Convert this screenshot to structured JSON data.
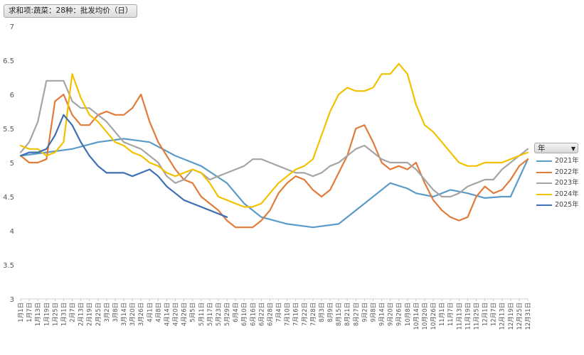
{
  "field_button": "求和项:蔬菜：28种：批发均价（日）",
  "legend_filter": "年",
  "colors": {
    "2021年": "#5b9bc8",
    "2022年": "#e07b39",
    "2023年": "#a5a5a5",
    "2024年": "#f2c200",
    "2025年": "#3e6fb2"
  },
  "chart_data": {
    "type": "line",
    "ylim": [
      3,
      7
    ],
    "yticks": [
      "3",
      "3.5",
      "4",
      "4.5",
      "5",
      "5.5",
      "6",
      "6.5",
      "7"
    ],
    "xticks": [
      "1月1日",
      "1月7日",
      "1月13日",
      "1月19日",
      "1月25日",
      "1月31日",
      "2月7日",
      "2月13日",
      "2月19日",
      "2月25日",
      "3月2日",
      "3月8日",
      "3月14日",
      "3月20日",
      "3月26日",
      "4月1日",
      "4月8日",
      "4月14日",
      "4月20日",
      "4月26日",
      "5月5日",
      "5月11日",
      "5月17日",
      "5月23日",
      "5月29日",
      "6月4日",
      "6月10日",
      "6月16日",
      "6月22日",
      "6月28日",
      "7月4日",
      "7月10日",
      "7月16日",
      "7月22日",
      "7月28日",
      "8月3日",
      "8月9日",
      "8月15日",
      "8月21日",
      "8月27日",
      "9月2日",
      "9月8日",
      "9月14日",
      "9月20日",
      "9月26日",
      "10月8日",
      "10月14日",
      "10月20日",
      "10月26日",
      "11月1日",
      "11月7日",
      "11月13日",
      "11月19日",
      "11月25日",
      "12月1日",
      "12月7日",
      "12月13日",
      "12月19日",
      "12月25日",
      "12月31日"
    ],
    "series": [
      {
        "name": "2021年",
        "x": [
          0,
          3,
          6,
          9,
          12,
          15,
          18,
          21,
          24,
          26,
          28,
          31,
          34,
          37,
          40,
          43,
          45,
          46,
          48,
          50,
          52,
          54,
          56,
          57,
          59
        ],
        "y": [
          5.1,
          5.15,
          5.2,
          5.3,
          5.35,
          5.3,
          5.1,
          4.95,
          4.7,
          4.4,
          4.2,
          4.1,
          4.05,
          4.1,
          4.4,
          4.7,
          4.62,
          4.55,
          4.5,
          4.6,
          4.55,
          4.48,
          4.5,
          4.5,
          5.05
        ]
      },
      {
        "name": "2022年",
        "x": [
          0,
          1,
          2,
          3,
          4,
          5,
          6,
          7,
          8,
          9,
          10,
          11,
          12,
          13,
          14,
          15,
          16,
          17,
          18,
          19,
          20,
          21,
          22,
          23,
          24,
          25,
          26,
          27,
          28,
          29,
          30,
          31,
          32,
          33,
          34,
          35,
          36,
          37,
          38,
          39,
          40,
          41,
          42,
          43,
          44,
          45,
          46,
          47,
          48,
          49,
          50,
          51,
          52,
          53,
          54,
          55,
          56,
          57,
          58,
          59
        ],
        "y": [
          5.1,
          5.0,
          5.0,
          5.05,
          5.9,
          6.0,
          5.7,
          5.55,
          5.55,
          5.7,
          5.75,
          5.7,
          5.7,
          5.8,
          6.0,
          5.6,
          5.3,
          5.1,
          4.9,
          4.75,
          4.7,
          4.5,
          4.4,
          4.3,
          4.15,
          4.05,
          4.05,
          4.05,
          4.15,
          4.3,
          4.55,
          4.7,
          4.8,
          4.75,
          4.6,
          4.5,
          4.6,
          4.85,
          5.1,
          5.5,
          5.55,
          5.3,
          5.0,
          4.9,
          4.95,
          4.9,
          5.0,
          4.7,
          4.45,
          4.3,
          4.2,
          4.15,
          4.2,
          4.5,
          4.65,
          4.55,
          4.6,
          4.75,
          4.95,
          5.05
        ]
      },
      {
        "name": "2023年",
        "x": [
          0,
          1,
          2,
          3,
          4,
          5,
          6,
          7,
          8,
          9,
          10,
          11,
          12,
          13,
          14,
          15,
          16,
          17,
          18,
          19,
          20,
          21,
          22,
          23,
          24,
          25,
          26,
          27,
          28,
          29,
          30,
          31,
          32,
          33,
          34,
          35,
          36,
          37,
          38,
          39,
          40,
          41,
          42,
          43,
          44,
          45,
          46,
          47,
          48,
          49,
          50,
          51,
          52,
          53,
          54,
          55,
          56,
          57,
          58,
          59
        ],
        "y": [
          5.15,
          5.3,
          5.6,
          6.2,
          6.2,
          6.2,
          5.9,
          5.8,
          5.8,
          5.7,
          5.6,
          5.45,
          5.3,
          5.25,
          5.2,
          5.1,
          5.0,
          4.8,
          4.7,
          4.75,
          4.9,
          4.85,
          4.75,
          4.8,
          4.85,
          4.9,
          4.95,
          5.05,
          5.05,
          5.0,
          4.95,
          4.9,
          4.85,
          4.85,
          4.8,
          4.85,
          4.95,
          5.0,
          5.1,
          5.2,
          5.25,
          5.15,
          5.05,
          5.0,
          5.0,
          5.0,
          4.9,
          4.75,
          4.6,
          4.5,
          4.5,
          4.55,
          4.65,
          4.7,
          4.75,
          4.75,
          4.9,
          5.0,
          5.1,
          5.2
        ]
      },
      {
        "name": "2024年",
        "x": [
          0,
          1,
          2,
          3,
          4,
          5,
          6,
          7,
          8,
          9,
          10,
          11,
          12,
          13,
          14,
          15,
          16,
          17,
          18,
          19,
          20,
          21,
          22,
          23,
          24,
          25,
          26,
          27,
          28,
          29,
          30,
          31,
          32,
          33,
          34,
          35,
          36,
          37,
          38,
          39,
          40,
          41,
          42,
          43,
          44,
          45,
          46,
          47,
          48,
          49,
          50,
          51,
          52,
          53,
          54,
          55,
          56,
          57,
          58,
          59
        ],
        "y": [
          5.25,
          5.2,
          5.2,
          5.1,
          5.15,
          5.3,
          6.3,
          5.95,
          5.7,
          5.6,
          5.45,
          5.3,
          5.25,
          5.15,
          5.1,
          5.0,
          4.95,
          4.85,
          4.8,
          4.85,
          4.9,
          4.85,
          4.7,
          4.5,
          4.45,
          4.4,
          4.35,
          4.35,
          4.4,
          4.55,
          4.7,
          4.8,
          4.9,
          4.95,
          5.05,
          5.4,
          5.75,
          6.0,
          6.1,
          6.05,
          6.05,
          6.1,
          6.3,
          6.3,
          6.45,
          6.3,
          5.85,
          5.55,
          5.45,
          5.3,
          5.15,
          5.0,
          4.95,
          4.95,
          5.0,
          5.0,
          5.0,
          5.05,
          5.1,
          5.15
        ]
      },
      {
        "name": "2025年",
        "x": [
          0,
          1,
          2,
          3,
          4,
          5,
          6,
          7,
          8,
          9,
          10,
          11,
          12,
          13,
          14,
          15,
          16,
          17,
          18,
          19,
          20,
          21,
          22,
          23,
          24
        ],
        "y": [
          5.1,
          5.15,
          5.15,
          5.2,
          5.4,
          5.7,
          5.55,
          5.3,
          5.1,
          4.95,
          4.85,
          4.85,
          4.85,
          4.8,
          4.85,
          4.9,
          4.8,
          4.65,
          4.55,
          4.45,
          4.4,
          4.35,
          4.3,
          4.25,
          4.2
        ]
      }
    ]
  }
}
